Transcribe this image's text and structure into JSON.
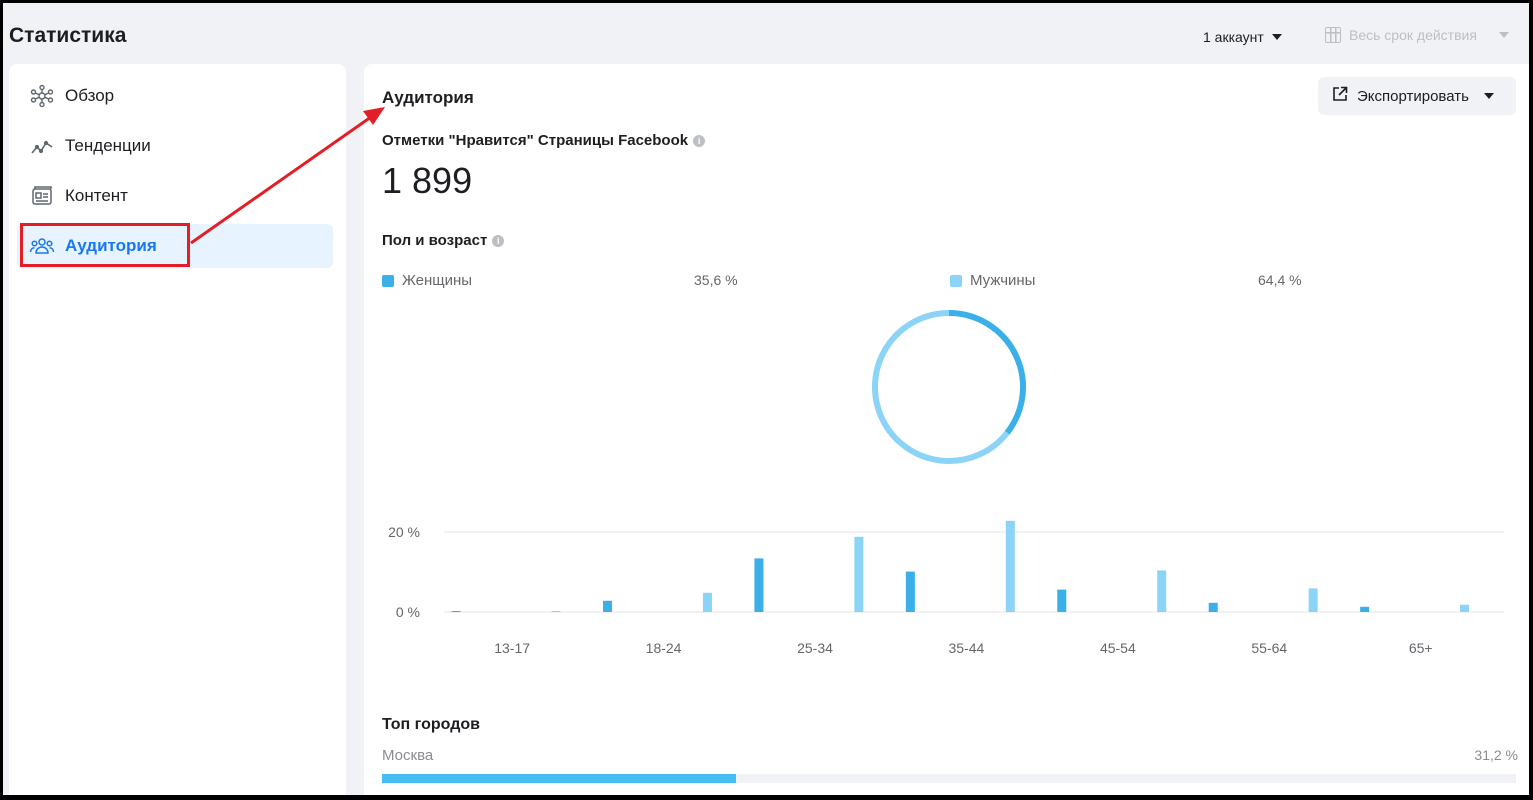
{
  "header": {
    "title": "Статистика",
    "account_select": "1 аккаунт",
    "date_range": "Весь срок действия"
  },
  "sidebar": {
    "items": [
      {
        "label": "Обзор",
        "icon": "overview-icon"
      },
      {
        "label": "Тенденции",
        "icon": "trends-icon"
      },
      {
        "label": "Контент",
        "icon": "content-icon"
      },
      {
        "label": "Аудитория",
        "icon": "audience-icon",
        "active": true
      }
    ]
  },
  "main": {
    "section_title": "Аудитория",
    "export_label": "Экспортировать",
    "likes_label": "Отметки \"Нравится\" Страницы Facebook",
    "likes_value": "1 899",
    "gender_age_title": "Пол и возраст",
    "legend": [
      {
        "name": "Женщины",
        "pct": "35,6 %",
        "color": "#3bafe8"
      },
      {
        "name": "Мужчины",
        "pct": "64,4 %",
        "color": "#8bd3f7"
      }
    ],
    "top_cities_title": "Топ городов",
    "cities": [
      {
        "name": "Москва",
        "pct": "31,2 %",
        "value": 31.2
      }
    ]
  },
  "chart_data": [
    {
      "type": "pie",
      "labels": [
        "Женщины",
        "Мужчины"
      ],
      "values": [
        35.6,
        64.4
      ],
      "colors": [
        "#3bafe8",
        "#8bd3f7"
      ]
    },
    {
      "type": "bar",
      "categories": [
        "13-17",
        "18-24",
        "25-34",
        "35-44",
        "45-54",
        "55-64",
        "65+"
      ],
      "series": [
        {
          "name": "Женщины",
          "values": [
            0.1,
            2.8,
            13.4,
            10.1,
            5.6,
            2.3,
            1.3
          ]
        },
        {
          "name": "Мужчины",
          "values": [
            0.2,
            4.8,
            18.8,
            22.8,
            10.4,
            5.9,
            1.8
          ]
        }
      ],
      "ytick_labels": [
        "0 %",
        "20 %"
      ],
      "ylim": [
        0,
        25
      ]
    }
  ]
}
